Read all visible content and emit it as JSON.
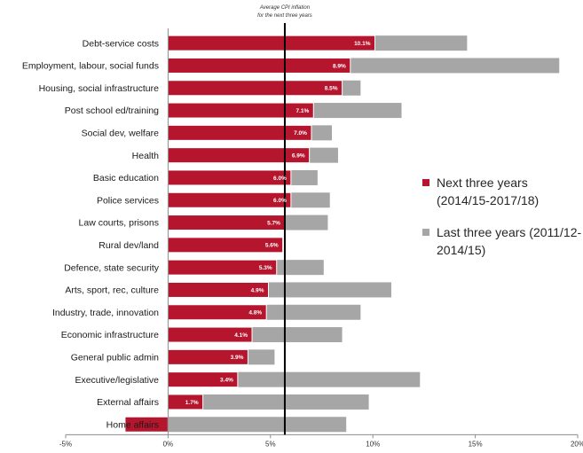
{
  "chart_data": {
    "type": "bar",
    "orientation": "horizontal",
    "categories": [
      "Debt-service costs",
      "Employment, labour, social funds",
      "Housing, social infrastructure",
      "Post school ed/training",
      "Social dev, welfare",
      "Health",
      "Basic education",
      "Police services",
      "Law courts, prisons",
      "Rural dev/land",
      "Defence, state security",
      "Arts, sport, rec, culture",
      "Industry, trade, innovation",
      "Economic infrastructure",
      "General public admin",
      "Executive/legislative",
      "External affairs",
      "Home affairs"
    ],
    "series": [
      {
        "name": "Next three years (2014/15-2017/18)",
        "color": "#b5162d",
        "values": [
          10.1,
          8.9,
          8.5,
          7.1,
          7.0,
          6.9,
          6.0,
          6.0,
          5.7,
          5.6,
          5.3,
          4.9,
          4.8,
          4.1,
          3.9,
          3.4,
          1.7,
          -2.1
        ],
        "data_labels": [
          "10.1%",
          "8.9%",
          "8.5%",
          "7.1%",
          "7.0%",
          "6.9%",
          "6.0%",
          "6.0%",
          "5.7%",
          "5.6%",
          "5.3%",
          "4.9%",
          "4.8%",
          "4.1%",
          "3.9%",
          "3.4%",
          "1.7%",
          ""
        ]
      },
      {
        "name": "Last three years (2011/12-2014/15)",
        "color": "#a6a6a6",
        "values": [
          14.6,
          19.1,
          9.4,
          11.4,
          8.0,
          8.3,
          7.3,
          7.9,
          7.8,
          5.6,
          7.6,
          10.9,
          9.4,
          8.5,
          5.2,
          12.3,
          9.8,
          8.7
        ]
      }
    ],
    "reference_line": {
      "value": 5.7,
      "label_line1": "Average CPI inflation",
      "label_line2": "for the next three years"
    },
    "xlim": [
      -5,
      20
    ],
    "ticks": [
      {
        "value": -5,
        "label": "-5%"
      },
      {
        "value": 0,
        "label": "0%"
      },
      {
        "value": 5,
        "label": "5%"
      },
      {
        "value": 10,
        "label": "10%"
      },
      {
        "value": 15,
        "label": "15%"
      },
      {
        "value": 20,
        "label": "20%"
      }
    ],
    "legend_position": "right",
    "grid": false,
    "title": "",
    "xlabel": "",
    "ylabel": ""
  }
}
